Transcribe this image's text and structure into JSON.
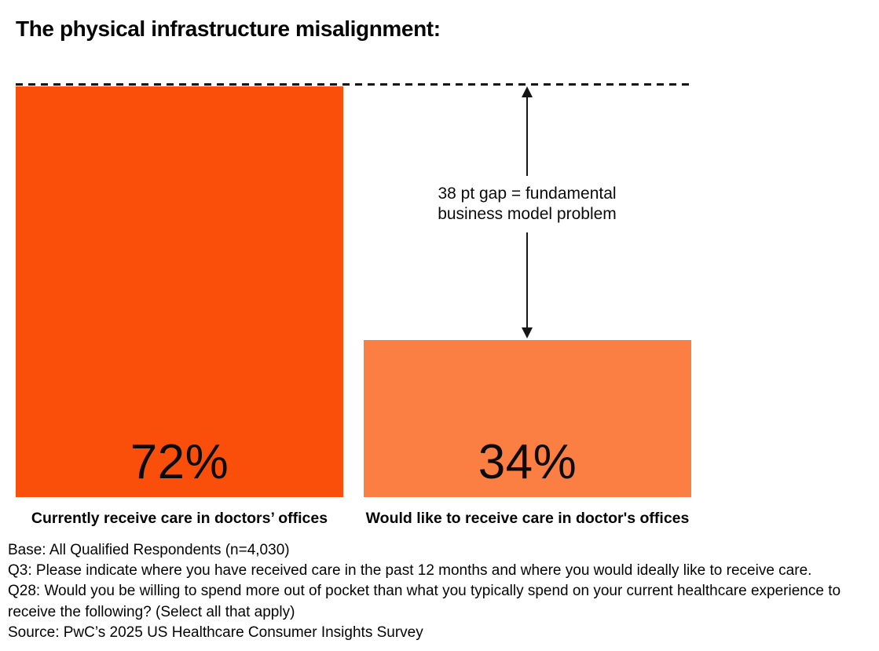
{
  "header": {
    "title": "The physical infrastructure misalignment:"
  },
  "chart_data": {
    "type": "bar",
    "title": "The physical infrastructure misalignment:",
    "categories": [
      "Currently receive care in doctors’ offices",
      "Would like to receive care in doctor's offices"
    ],
    "values": [
      72,
      34
    ],
    "unit": "%",
    "value_labels": [
      "72%",
      "34%"
    ],
    "bar_colors": [
      "#FA4E0B",
      "#FB7E42"
    ],
    "ylim": [
      0,
      72
    ],
    "grid": false,
    "legend": "none",
    "reference_line": {
      "style": "dashed",
      "value": 72,
      "color": "#151515",
      "note": "spans full chart width at top of first bar"
    },
    "gap_annotation": {
      "gap_points": 38,
      "text": "38 pt gap = fundamental business model problem",
      "arrow": "vertical double-headed between dashed reference line and top of second bar"
    }
  },
  "bars": [
    {
      "value_label": "72%",
      "category_label": "Currently receive care in doctors’ offices",
      "color": "#FA4E0B"
    },
    {
      "value_label": "34%",
      "category_label": "Would like to receive care in doctor's offices",
      "color": "#FB7E42"
    }
  ],
  "annotation": {
    "line1": "38 pt gap = fundamental",
    "line2": "business model problem"
  },
  "footnotes": {
    "base": "Base: All Qualified Respondents (n=4,030)",
    "q3": "Q3: Please indicate where you have received care in the past 12 months and where you would ideally like to receive care.",
    "q28": "Q28: Would you be willing to spend more out of pocket than what you typically spend on your current healthcare experience to receive the following? (Select all that apply)",
    "source": "Source: PwC’s 2025 US Healthcare Consumer Insights Survey"
  }
}
